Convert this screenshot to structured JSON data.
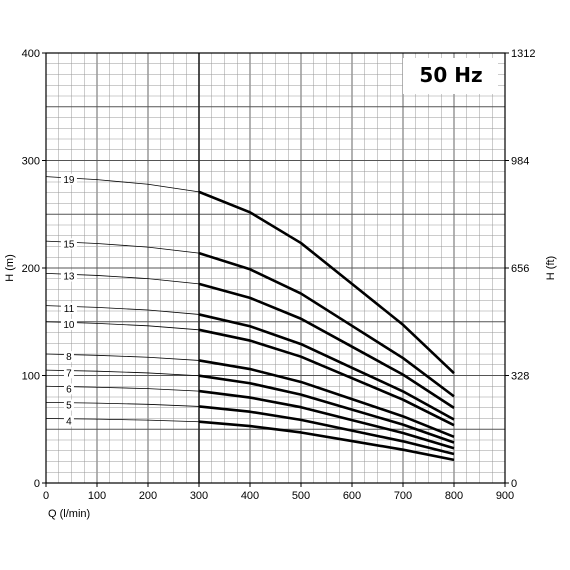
{
  "chart_data": {
    "type": "line",
    "title": "50 Hz",
    "xlabel": "Q (l/min)",
    "ylabel": "H (m)",
    "y2label": "H (ft)",
    "xlim": [
      0,
      900
    ],
    "ylim": [
      0,
      400
    ],
    "x_ticks": [
      0,
      100,
      200,
      300,
      400,
      500,
      600,
      700,
      800,
      900
    ],
    "y_ticks": [
      0,
      100,
      200,
      300,
      400
    ],
    "y2_ticks": [
      0,
      328,
      656,
      984,
      1312
    ],
    "grid": true,
    "operating_range": [
      300,
      800
    ],
    "x": [
      0,
      100,
      200,
      300,
      400,
      500,
      600,
      700,
      800
    ],
    "series": [
      {
        "name": "4",
        "values": [
          60.0,
          59.4,
          58.5,
          57.0,
          53.0,
          47.0,
          39.0,
          31.0,
          21.5
        ]
      },
      {
        "name": "5",
        "values": [
          75.0,
          74.3,
          73.2,
          71.2,
          66.3,
          58.7,
          48.7,
          38.8,
          27.0
        ]
      },
      {
        "name": "6",
        "values": [
          90.0,
          89.1,
          87.8,
          85.5,
          79.5,
          70.5,
          58.5,
          46.5,
          32.3
        ]
      },
      {
        "name": "7",
        "values": [
          105.0,
          104.0,
          102.4,
          99.8,
          92.8,
          82.2,
          68.3,
          54.3,
          37.7
        ]
      },
      {
        "name": "8",
        "values": [
          120.0,
          118.8,
          117.0,
          114.0,
          106.0,
          94.0,
          78.0,
          62.0,
          43.0
        ]
      },
      {
        "name": "10",
        "values": [
          150.0,
          148.5,
          146.2,
          142.5,
          132.5,
          117.5,
          97.5,
          77.5,
          53.8
        ]
      },
      {
        "name": "11",
        "values": [
          165.0,
          163.4,
          160.9,
          156.8,
          145.8,
          129.2,
          107.2,
          85.2,
          59.1
        ]
      },
      {
        "name": "13",
        "values": [
          195.0,
          193.1,
          190.1,
          185.2,
          172.2,
          152.8,
          126.8,
          100.8,
          69.9
        ]
      },
      {
        "name": "15",
        "values": [
          225.0,
          222.8,
          219.4,
          213.8,
          198.8,
          176.2,
          146.2,
          116.2,
          80.6
        ]
      },
      {
        "name": "19",
        "values": [
          285.0,
          282.2,
          277.9,
          270.8,
          251.8,
          223.2,
          185.2,
          147.2,
          102.1
        ]
      }
    ]
  }
}
